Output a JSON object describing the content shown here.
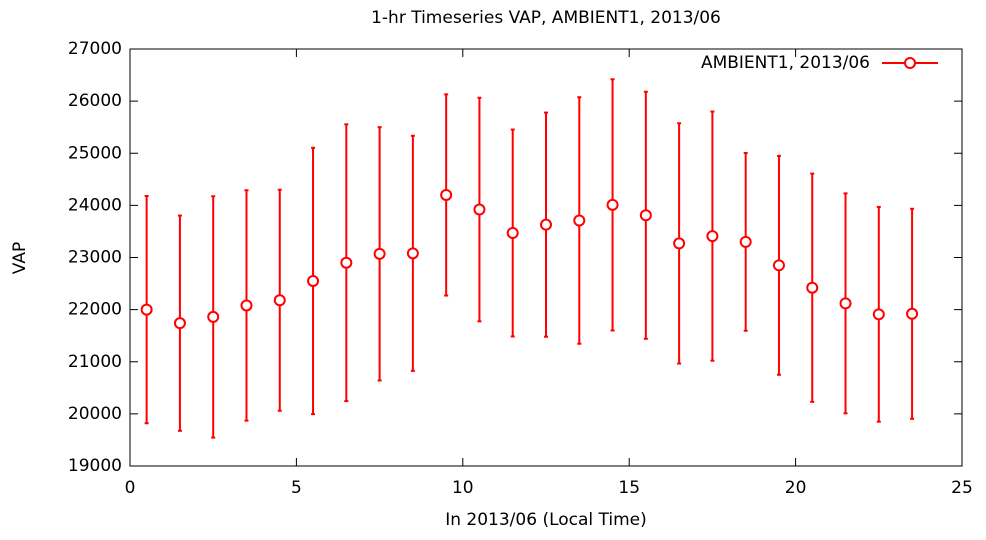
{
  "chart_data": {
    "type": "errorbar",
    "title": "1-hr Timeseries VAP, AMBIENT1, 2013/06",
    "xlabel": "In 2013/06 (Local Time)",
    "ylabel": "VAP",
    "series": [
      {
        "name": "AMBIENT1, 2013/06",
        "color": "#ff0000",
        "x": [
          0.5,
          1.5,
          2.5,
          3.5,
          4.5,
          5.5,
          6.5,
          7.5,
          8.5,
          9.5,
          10.5,
          11.5,
          12.5,
          13.5,
          14.5,
          15.5,
          16.5,
          17.5,
          18.5,
          19.5,
          20.5,
          21.5,
          22.5,
          23.5
        ],
        "values": [
          22000,
          21740,
          21860,
          22080,
          22180,
          22550,
          22900,
          23070,
          23080,
          24200,
          23920,
          23470,
          23630,
          23710,
          24010,
          23810,
          23270,
          23410,
          23300,
          22850,
          22420,
          22120,
          21910,
          21920
        ],
        "errors": [
          2180,
          2065,
          2315,
          2210,
          2120,
          2555,
          2655,
          2430,
          2255,
          1930,
          2145,
          1985,
          2150,
          2365,
          2410,
          2370,
          2305,
          2390,
          1705,
          2100,
          2190,
          2110,
          2060,
          2015
        ]
      }
    ],
    "xlim": [
      0,
      25
    ],
    "xticks": [
      0,
      5,
      10,
      15,
      20,
      25
    ],
    "ylim": [
      19000,
      27000
    ],
    "yticks": [
      19000,
      20000,
      21000,
      22000,
      23000,
      24000,
      25000,
      26000,
      27000
    ],
    "legend": "top-right"
  }
}
